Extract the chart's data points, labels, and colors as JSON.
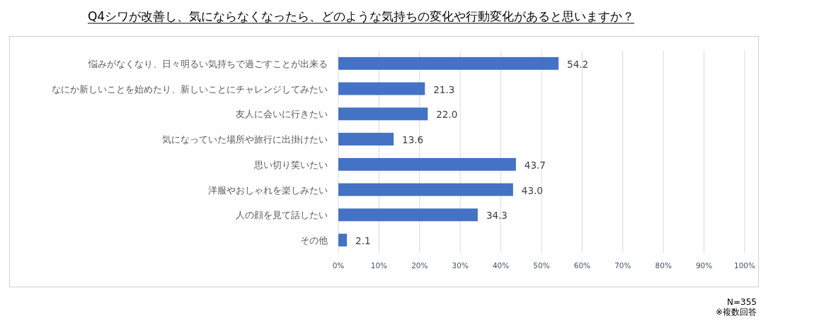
{
  "chart_data": {
    "type": "bar",
    "orientation": "horizontal",
    "title": "Q4シワが改善し、気にならなくなったら、どのような気持ちの変化や行動変化があると思いますか？",
    "categories": [
      "悩みがなくなり、日々明るい気持ちで過ごすことが出来る",
      "なにか新しいことを始めたり、新しいことにチャレンジしてみたい",
      "友人に会いに行きたい",
      "気になっていた場所や旅行に出掛けたい",
      "思い切り笑いたい",
      "洋服やおしゃれを楽しみたい",
      "人の顔を見て話したい",
      "その他"
    ],
    "values": [
      54.2,
      21.3,
      22.0,
      13.6,
      43.7,
      43.0,
      34.3,
      2.1
    ],
    "value_labels": [
      "54.2",
      "21.3",
      "22.0",
      "13.6",
      "43.7",
      "43.0",
      "34.3",
      "2.1"
    ],
    "color": "#4472c4",
    "xlim": [
      0,
      100
    ],
    "xticks": [
      {
        "value": 0,
        "label": "0%"
      },
      {
        "value": 10,
        "label": "10%"
      },
      {
        "value": 20,
        "label": "20%"
      },
      {
        "value": 30,
        "label": "30%"
      },
      {
        "value": 40,
        "label": "40%"
      },
      {
        "value": 50,
        "label": "50%"
      },
      {
        "value": 60,
        "label": "60%"
      },
      {
        "value": 70,
        "label": "70%"
      },
      {
        "value": 80,
        "label": "80%"
      },
      {
        "value": 90,
        "label": "90%"
      },
      {
        "value": 100,
        "label": "100%"
      }
    ],
    "grid": "x",
    "annotations": [
      "N=355",
      "※複数回答"
    ]
  }
}
